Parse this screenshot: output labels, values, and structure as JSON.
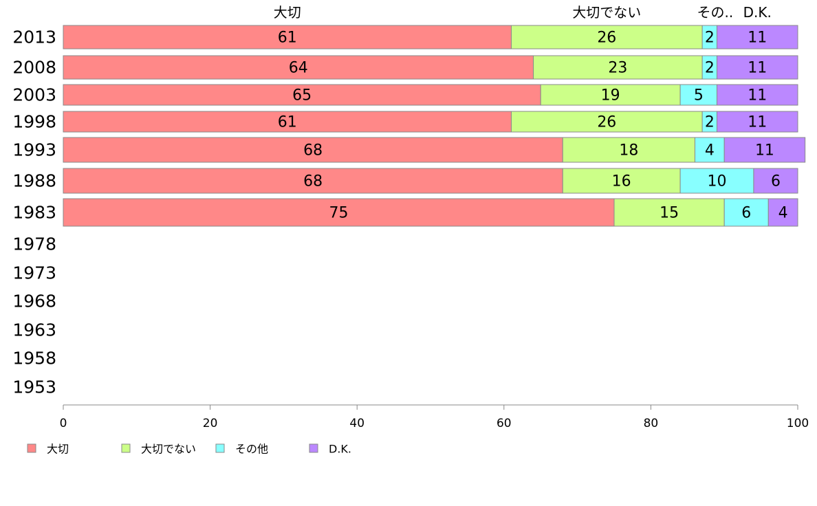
{
  "chart_data": {
    "type": "bar",
    "orientation": "horizontal",
    "stacked": true,
    "categories": [
      "2013",
      "2008",
      "2003",
      "1998",
      "1993",
      "1988",
      "1983",
      "1978",
      "1973",
      "1968",
      "1963",
      "1958",
      "1953"
    ],
    "series": [
      {
        "name": "大切",
        "color": "#ff8888",
        "values": [
          61,
          64,
          65,
          61,
          68,
          68,
          75,
          null,
          null,
          null,
          null,
          null,
          null
        ]
      },
      {
        "name": "大切でない",
        "color": "#ccff88",
        "values": [
          26,
          23,
          19,
          26,
          18,
          16,
          15,
          null,
          null,
          null,
          null,
          null,
          null
        ]
      },
      {
        "name": "その他",
        "color": "#88ffff",
        "values": [
          2,
          2,
          5,
          2,
          4,
          10,
          6,
          null,
          null,
          null,
          null,
          null,
          null
        ]
      },
      {
        "name": "D.K.",
        "color": "#bb88ff",
        "values": [
          11,
          11,
          11,
          11,
          11,
          6,
          4,
          null,
          null,
          null,
          null,
          null,
          null
        ]
      }
    ],
    "top_labels": [
      "大切",
      "大切でない",
      "その..",
      "D.K."
    ],
    "xlim": [
      0,
      100
    ],
    "xticks": [
      0,
      20,
      40,
      60,
      80,
      100
    ],
    "grid": false,
    "legend": {
      "position": "bottom-left",
      "entries": [
        "大切",
        "大切でない",
        "その他",
        "D.K."
      ]
    }
  }
}
